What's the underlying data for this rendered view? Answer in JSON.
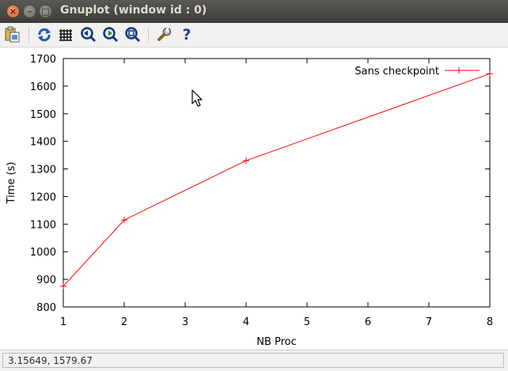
{
  "window": {
    "title": "Gnuplot (window id : 0)",
    "close_glyph": "×",
    "minimize_glyph": "–",
    "maximize_glyph": "□"
  },
  "toolbar": {
    "icons": [
      "copy-to-clipboard-icon",
      "replot-icon",
      "grid-icon",
      "previous-zoom-icon",
      "next-zoom-icon",
      "autoscale-icon",
      "settings-icon",
      "help-icon"
    ],
    "help_glyph": "?"
  },
  "status": {
    "coordinates": "3.15649,  1579.67"
  },
  "colors": {
    "series": "#ff0000",
    "titlebar": "#3c3b37",
    "accent_close": "#e05a2b"
  },
  "chart_data": {
    "type": "line",
    "xlabel": "NB Proc",
    "ylabel": "Time (s)",
    "xlim": [
      1,
      8
    ],
    "ylim": [
      800,
      1700
    ],
    "xticks": [
      1,
      2,
      3,
      4,
      5,
      6,
      7,
      8
    ],
    "yticks": [
      800,
      900,
      1000,
      1100,
      1200,
      1300,
      1400,
      1500,
      1600,
      1700
    ],
    "grid": false,
    "legend_position": "top-right",
    "series": [
      {
        "name": "Sans checkpoint",
        "x": [
          1,
          2,
          4,
          8
        ],
        "y": [
          875,
          1115,
          1330,
          1645
        ]
      }
    ]
  }
}
